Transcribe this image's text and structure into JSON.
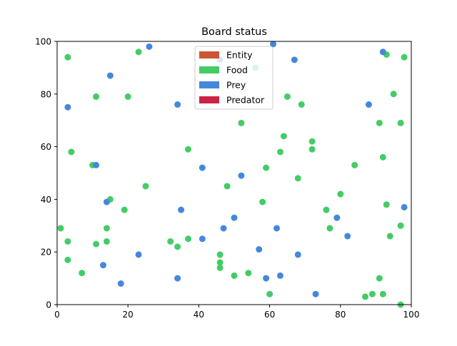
{
  "chart_data": {
    "type": "scatter",
    "title": "Board status",
    "xlabel": "",
    "ylabel": "",
    "xlim": [
      0,
      100
    ],
    "ylim": [
      0,
      100
    ],
    "xticks": [
      "0",
      "20",
      "40",
      "60",
      "80",
      "100"
    ],
    "yticks": [
      "0",
      "20",
      "40",
      "60",
      "80",
      "100"
    ],
    "grid": false,
    "legend_position": "top-center",
    "legend": [
      {
        "label": "Entity",
        "color": "#cc5533"
      },
      {
        "label": "Food",
        "color": "#44cc66"
      },
      {
        "label": "Prey",
        "color": "#4488dd"
      },
      {
        "label": "Predator",
        "color": "#cc2244"
      }
    ],
    "series": [
      {
        "name": "Food",
        "color": "#44cc66",
        "points": [
          [
            3,
            94
          ],
          [
            23,
            96
          ],
          [
            56,
            90
          ],
          [
            93,
            95
          ],
          [
            98,
            94
          ],
          [
            11,
            79
          ],
          [
            20,
            79
          ],
          [
            65,
            79
          ],
          [
            95,
            80
          ],
          [
            69,
            76
          ],
          [
            52,
            69
          ],
          [
            91,
            69
          ],
          [
            97,
            69
          ],
          [
            64,
            64
          ],
          [
            72,
            62
          ],
          [
            4,
            58
          ],
          [
            37,
            59
          ],
          [
            63,
            58
          ],
          [
            72,
            59
          ],
          [
            10,
            53
          ],
          [
            59,
            52
          ],
          [
            84,
            53
          ],
          [
            92,
            56
          ],
          [
            25,
            45
          ],
          [
            48,
            45
          ],
          [
            68,
            48
          ],
          [
            80,
            42
          ],
          [
            15,
            40
          ],
          [
            19,
            36
          ],
          [
            58,
            39
          ],
          [
            76,
            36
          ],
          [
            93,
            38
          ],
          [
            1,
            29
          ],
          [
            14,
            29
          ],
          [
            77,
            29
          ],
          [
            97,
            30
          ],
          [
            3,
            24
          ],
          [
            11,
            23
          ],
          [
            14,
            24
          ],
          [
            32,
            24
          ],
          [
            34,
            22
          ],
          [
            37,
            25
          ],
          [
            3,
            17
          ],
          [
            7,
            12
          ],
          [
            46,
            19
          ],
          [
            46,
            16
          ],
          [
            46,
            14
          ],
          [
            50,
            11
          ],
          [
            54,
            12
          ],
          [
            94,
            26
          ],
          [
            60,
            4
          ],
          [
            87,
            3
          ],
          [
            89,
            4
          ],
          [
            91,
            10
          ],
          [
            92,
            4
          ],
          [
            97,
            0
          ]
        ]
      },
      {
        "name": "Prey",
        "color": "#4488dd",
        "points": [
          [
            26,
            98
          ],
          [
            61,
            99
          ],
          [
            92,
            96
          ],
          [
            15,
            87
          ],
          [
            46,
            93
          ],
          [
            67,
            93
          ],
          [
            3,
            75
          ],
          [
            34,
            76
          ],
          [
            88,
            76
          ],
          [
            11,
            53
          ],
          [
            41,
            52
          ],
          [
            52,
            49
          ],
          [
            14,
            39
          ],
          [
            35,
            36
          ],
          [
            50,
            33
          ],
          [
            79,
            33
          ],
          [
            98,
            37
          ],
          [
            41,
            25
          ],
          [
            47,
            29
          ],
          [
            62,
            29
          ],
          [
            82,
            26
          ],
          [
            23,
            19
          ],
          [
            57,
            21
          ],
          [
            68,
            19
          ],
          [
            13,
            15
          ],
          [
            18,
            8
          ],
          [
            34,
            10
          ],
          [
            59,
            10
          ],
          [
            63,
            11
          ],
          [
            73,
            4
          ]
        ]
      }
    ]
  }
}
